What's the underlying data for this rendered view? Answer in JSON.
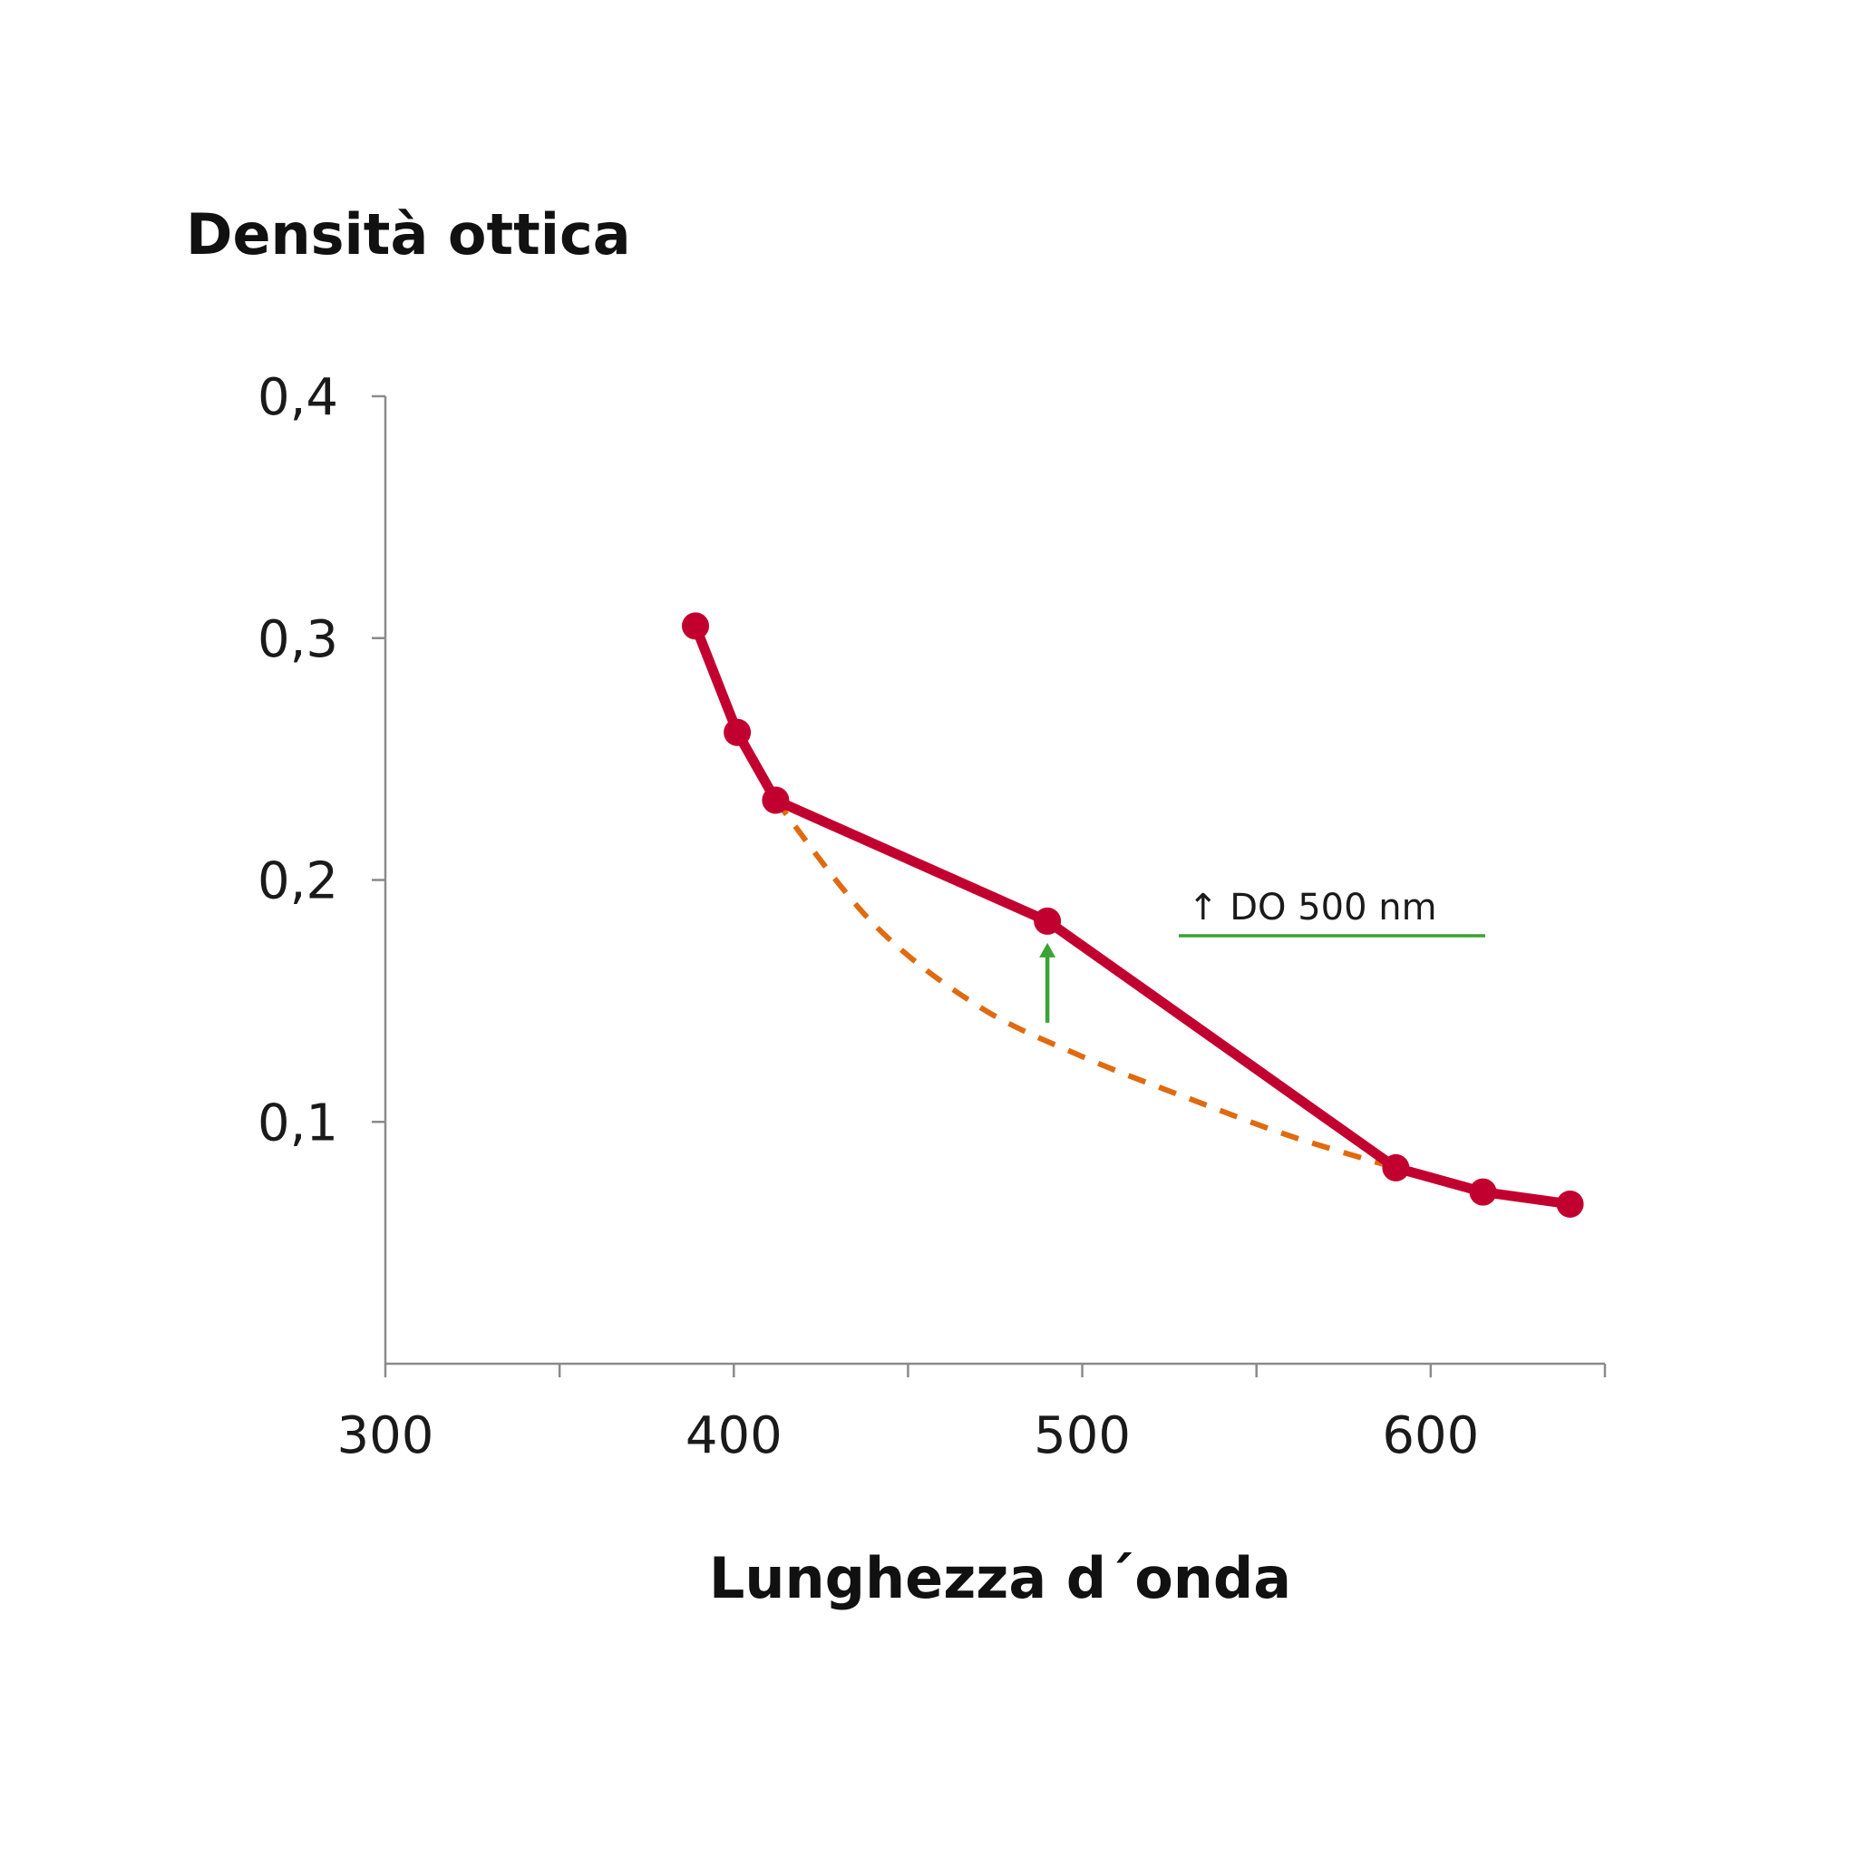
{
  "chart_data": {
    "type": "line",
    "ylabel": "Densità ottica",
    "xlabel": "Lunghezza d´onda",
    "xlim": [
      300,
      650
    ],
    "ylim": [
      0,
      0.4
    ],
    "x_ticks": [
      300,
      350,
      400,
      450,
      500,
      550,
      600,
      650
    ],
    "x_tick_labels": [
      {
        "value": 300,
        "text": "300"
      },
      {
        "value": 400,
        "text": "400"
      },
      {
        "value": 500,
        "text": "500"
      },
      {
        "value": 600,
        "text": "600"
      }
    ],
    "y_tick_labels": [
      {
        "value": 0.1,
        "text": "0,1"
      },
      {
        "value": 0.2,
        "text": "0,2"
      },
      {
        "value": 0.3,
        "text": "0,3"
      },
      {
        "value": 0.4,
        "text": "0,4"
      }
    ],
    "grid": false,
    "series": [
      {
        "style": "solid-markers",
        "color": "#c20030",
        "points": [
          {
            "x": 389,
            "y": 0.305
          },
          {
            "x": 401,
            "y": 0.261
          },
          {
            "x": 412,
            "y": 0.233
          },
          {
            "x": 490,
            "y": 0.183
          },
          {
            "x": 590,
            "y": 0.081
          },
          {
            "x": 615,
            "y": 0.071
          },
          {
            "x": 640,
            "y": 0.066
          }
        ]
      },
      {
        "style": "dashed",
        "color": "#e06a10",
        "points": [
          {
            "x": 412,
            "y": 0.233
          },
          {
            "x": 440,
            "y": 0.182
          },
          {
            "x": 470,
            "y": 0.148
          },
          {
            "x": 500,
            "y": 0.127
          },
          {
            "x": 530,
            "y": 0.11
          },
          {
            "x": 560,
            "y": 0.094
          },
          {
            "x": 590,
            "y": 0.081
          }
        ]
      }
    ],
    "annotations": [
      {
        "type": "arrow",
        "color": "#3aa335",
        "x": 490,
        "y_from": 0.141,
        "y_to": 0.174
      }
    ],
    "legend": {
      "text": "↑ DO 500 nm",
      "color": "#3aa335",
      "placement": "right-middle"
    }
  }
}
